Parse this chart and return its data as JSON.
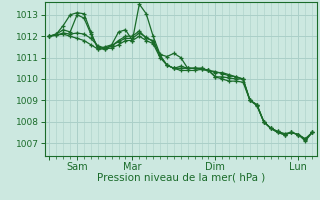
{
  "title": "",
  "xlabel": "Pression niveau de la mer( hPa )",
  "ylabel": "",
  "background_color": "#cce8e0",
  "grid_color": "#aacfc8",
  "line_color": "#1a6b2a",
  "ylim": [
    1006.4,
    1013.6
  ],
  "yticks": [
    1007,
    1008,
    1009,
    1010,
    1011,
    1012,
    1013
  ],
  "x_day_ticks": [
    0,
    24,
    72,
    144,
    216
  ],
  "x_day_labels": [
    "",
    "Sam",
    "Mar",
    "Dim",
    "Lun"
  ],
  "xlim": [
    -4,
    232
  ],
  "lines": [
    [
      0,
      1012.0,
      6,
      1012.1,
      12,
      1012.5,
      18,
      1013.0,
      24,
      1013.1,
      30,
      1013.05,
      36,
      1012.2,
      42,
      1011.4,
      48,
      1011.5,
      54,
      1011.6,
      60,
      1012.2,
      66,
      1012.3,
      72,
      1011.8,
      78,
      1013.5,
      84,
      1013.05,
      90,
      1012.0,
      96,
      1011.15,
      102,
      1011.05,
      108,
      1011.2,
      114,
      1011.0,
      120,
      1010.5,
      126,
      1010.5,
      132,
      1010.5,
      138,
      1010.4,
      144,
      1010.1,
      150,
      1010.1,
      156,
      1010.05,
      162,
      1010.0,
      168,
      1010.0,
      174,
      1009.0,
      180,
      1008.8,
      186,
      1008.0,
      192,
      1007.7,
      198,
      1007.55,
      204,
      1007.4,
      210,
      1007.5,
      216,
      1007.4,
      222,
      1007.2,
      228,
      1007.5
    ],
    [
      0,
      1012.0,
      6,
      1012.05,
      12,
      1012.15,
      18,
      1012.1,
      24,
      1012.15,
      30,
      1012.1,
      36,
      1011.9,
      42,
      1011.55,
      48,
      1011.45,
      54,
      1011.55,
      60,
      1011.75,
      66,
      1011.9,
      72,
      1011.9,
      78,
      1012.15,
      84,
      1011.95,
      90,
      1011.75,
      96,
      1011.1,
      102,
      1010.65,
      108,
      1010.5,
      114,
      1010.6,
      120,
      1010.5,
      126,
      1010.5,
      132,
      1010.5,
      138,
      1010.4,
      144,
      1010.35,
      150,
      1010.25,
      156,
      1010.15,
      162,
      1010.1,
      168,
      1010.0,
      174,
      1009.0,
      180,
      1008.75,
      186,
      1008.0,
      192,
      1007.7,
      198,
      1007.55,
      204,
      1007.45,
      210,
      1007.5,
      216,
      1007.4,
      222,
      1007.15,
      228,
      1007.5
    ],
    [
      0,
      1012.0,
      6,
      1012.1,
      12,
      1012.3,
      18,
      1012.2,
      24,
      1013.0,
      30,
      1012.85,
      36,
      1012.1,
      42,
      1011.5,
      48,
      1011.4,
      54,
      1011.55,
      60,
      1011.8,
      66,
      1012.0,
      72,
      1012.0,
      78,
      1012.25,
      84,
      1011.9,
      90,
      1011.8,
      96,
      1011.1,
      102,
      1010.65,
      108,
      1010.5,
      114,
      1010.5,
      120,
      1010.5,
      126,
      1010.5,
      132,
      1010.45,
      138,
      1010.4,
      144,
      1010.3,
      150,
      1010.3,
      156,
      1010.2,
      162,
      1010.1,
      168,
      1010.0,
      174,
      1009.0,
      180,
      1008.8,
      186,
      1008.0,
      192,
      1007.7,
      198,
      1007.5,
      204,
      1007.4,
      210,
      1007.5,
      216,
      1007.4,
      222,
      1007.2,
      228,
      1007.5
    ],
    [
      0,
      1012.0,
      6,
      1012.05,
      12,
      1012.1,
      18,
      1012.0,
      24,
      1011.9,
      30,
      1011.8,
      36,
      1011.6,
      42,
      1011.4,
      48,
      1011.4,
      54,
      1011.45,
      60,
      1011.6,
      66,
      1011.8,
      72,
      1011.8,
      78,
      1012.0,
      84,
      1011.8,
      90,
      1011.65,
      96,
      1011.0,
      102,
      1010.65,
      108,
      1010.5,
      114,
      1010.4,
      120,
      1010.4,
      126,
      1010.4,
      132,
      1010.45,
      138,
      1010.4,
      144,
      1010.1,
      150,
      1010.0,
      156,
      1009.9,
      162,
      1009.9,
      168,
      1009.85,
      174,
      1009.0,
      180,
      1008.8,
      186,
      1008.0,
      192,
      1007.7,
      198,
      1007.5,
      204,
      1007.4,
      210,
      1007.5,
      216,
      1007.4,
      222,
      1007.1,
      228,
      1007.5
    ]
  ]
}
